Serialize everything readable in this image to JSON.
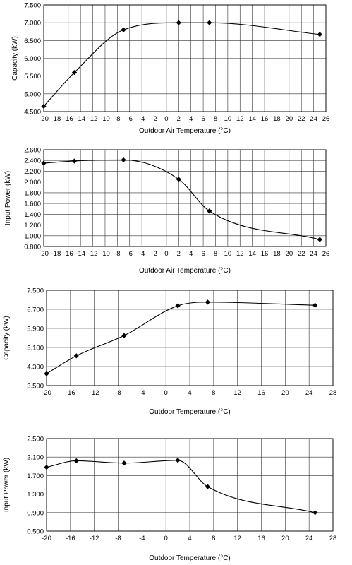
{
  "chart_data": [
    {
      "type": "line",
      "xlabel": "Outdoor Air Temperature (°C)",
      "ylabel": "Capacity (kW)",
      "xlim": [
        -20,
        26
      ],
      "ylim": [
        4.5,
        7.5
      ],
      "xticks": [
        -20,
        -18,
        -16,
        -14,
        -12,
        -10,
        -8,
        -6,
        -4,
        -2,
        0,
        2,
        4,
        6,
        8,
        10,
        12,
        14,
        16,
        18,
        20,
        22,
        24,
        26
      ],
      "xtick_labels": [
        "-20",
        "-18",
        "-16",
        "-14",
        "-12",
        "-10",
        "-8",
        "-6",
        "-4",
        "-2",
        "0",
        "2",
        "4",
        "6",
        "8",
        "10",
        "12",
        "14",
        "16",
        "18",
        "20",
        "22",
        "24",
        "26"
      ],
      "yticks": [
        4.5,
        5.0,
        5.5,
        6.0,
        6.5,
        7.0,
        7.5
      ],
      "ytick_labels": [
        "4.500",
        "5.000",
        "5.500",
        "6.000",
        "6.500",
        "7.000",
        "7.500"
      ],
      "grid": true,
      "marker": "diamond",
      "x": [
        -20,
        -15,
        -7,
        2,
        7,
        25
      ],
      "y": [
        4.65,
        5.6,
        6.8,
        7.0,
        7.0,
        6.67
      ]
    },
    {
      "type": "line",
      "xlabel": "Outdoor Air Temperature (°C)",
      "ylabel": "Input Power (kW)",
      "xlim": [
        -20,
        26
      ],
      "ylim": [
        0.8,
        2.6
      ],
      "xticks": [
        -20,
        -18,
        -16,
        -14,
        -12,
        -10,
        -8,
        -6,
        -4,
        -2,
        0,
        2,
        4,
        6,
        8,
        10,
        12,
        14,
        16,
        18,
        20,
        22,
        24,
        26
      ],
      "xtick_labels": [
        "-20",
        "-18",
        "-16",
        "-14",
        "-12",
        "-10",
        "-8",
        "-6",
        "-4",
        "-2",
        "0",
        "2",
        "4",
        "6",
        "8",
        "10",
        "12",
        "14",
        "16",
        "18",
        "20",
        "22",
        "24",
        "26"
      ],
      "yticks": [
        0.8,
        1.0,
        1.2,
        1.4,
        1.6,
        1.8,
        2.0,
        2.2,
        2.4,
        2.6
      ],
      "ytick_labels": [
        "0.800",
        "1.000",
        "1.200",
        "1.400",
        "1.600",
        "1.800",
        "2.000",
        "2.200",
        "2.400",
        "2.600"
      ],
      "grid": true,
      "marker": "diamond",
      "x": [
        -20,
        -15,
        -7,
        2,
        7,
        25
      ],
      "y": [
        2.35,
        2.39,
        2.41,
        2.05,
        1.46,
        0.93
      ]
    },
    {
      "type": "line",
      "xlabel": "Outdoor Temperature (°C)",
      "ylabel": "Capacity (kW)",
      "xlim": [
        -20,
        28
      ],
      "ylim": [
        3.5,
        7.5
      ],
      "xticks": [
        -20,
        -16,
        -12,
        -8,
        -4,
        0,
        4,
        8,
        12,
        16,
        20,
        24,
        28
      ],
      "xtick_labels": [
        "-20",
        "-16",
        "-12",
        "-8",
        "-4",
        "0",
        "4",
        "8",
        "12",
        "16",
        "20",
        "24",
        "28"
      ],
      "yticks": [
        3.5,
        4.3,
        5.1,
        5.9,
        6.7,
        7.5
      ],
      "ytick_labels": [
        "3.500",
        "4.300",
        "5.100",
        "5.900",
        "6.700",
        "7.500"
      ],
      "grid": true,
      "marker": "diamond",
      "x": [
        -20,
        -15,
        -7,
        2,
        7,
        25
      ],
      "y": [
        4.0,
        4.75,
        5.6,
        6.85,
        7.0,
        6.87
      ]
    },
    {
      "type": "line",
      "xlabel": "Outdoor Temperature (°C)",
      "ylabel": "Input Power (kW)",
      "xlim": [
        -20,
        28
      ],
      "ylim": [
        0.5,
        2.5
      ],
      "xticks": [
        -20,
        -16,
        -12,
        -8,
        -4,
        0,
        4,
        8,
        12,
        16,
        20,
        24,
        28
      ],
      "xtick_labels": [
        "-20",
        "-16",
        "-12",
        "-8",
        "-4",
        "0",
        "4",
        "8",
        "12",
        "16",
        "20",
        "24",
        "28"
      ],
      "yticks": [
        0.5,
        0.9,
        1.3,
        1.7,
        2.1,
        2.5
      ],
      "ytick_labels": [
        "0.500",
        "0.900",
        "1.300",
        "1.700",
        "2.100",
        "2.500"
      ],
      "grid": true,
      "marker": "diamond",
      "x": [
        -20,
        -15,
        -7,
        2,
        7,
        25
      ],
      "y": [
        1.88,
        2.02,
        1.97,
        2.03,
        1.46,
        0.9
      ]
    }
  ]
}
